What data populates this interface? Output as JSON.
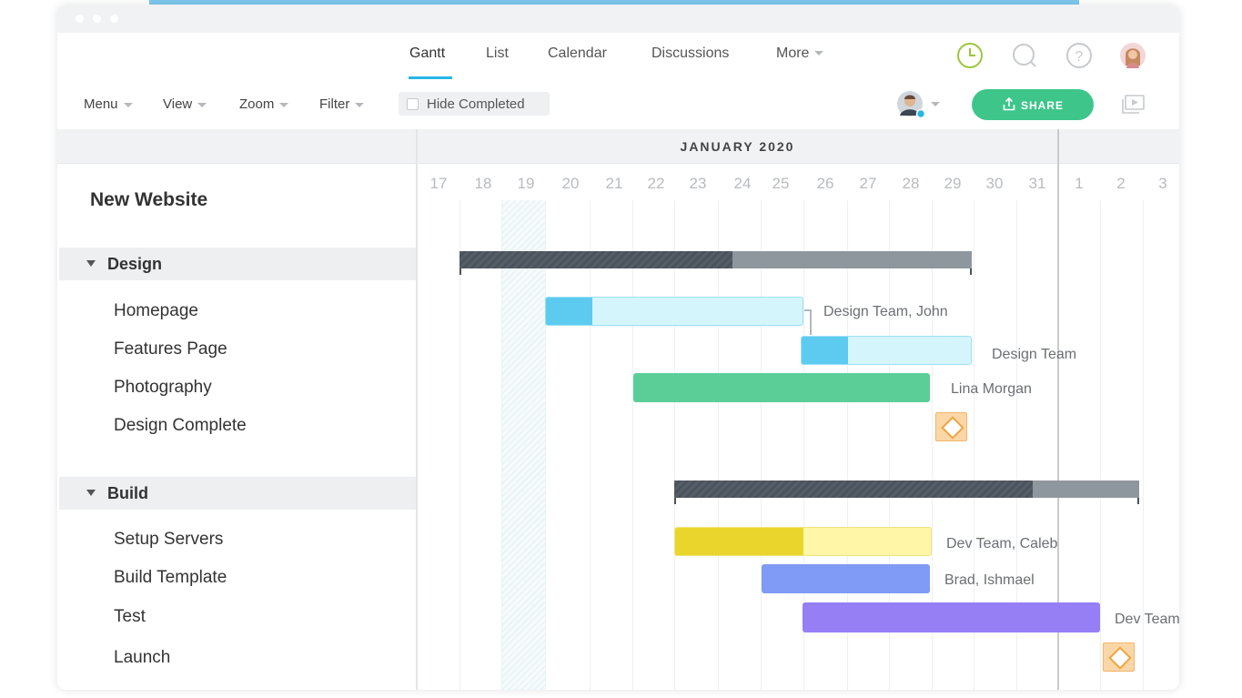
{
  "tabs": [
    {
      "label": "Gantt",
      "active": true
    },
    {
      "label": "List"
    },
    {
      "label": "Calendar"
    },
    {
      "label": "Discussions"
    },
    {
      "label": "More"
    }
  ],
  "header_icons": [
    "clock-icon",
    "search-icon",
    "help-icon",
    "user-avatar"
  ],
  "toolbar": {
    "menu": "Menu",
    "view": "View",
    "zoom": "Zoom",
    "filter": "Filter",
    "hide_completed": "Hide Completed",
    "share": "SHARE"
  },
  "project": {
    "title": "New Website"
  },
  "groups": [
    {
      "name": "Design",
      "tasks": [
        "Homepage",
        "Features Page",
        "Photography",
        "Design Complete"
      ]
    },
    {
      "name": "Build",
      "tasks": [
        "Setup Servers",
        "Build Template",
        "Test",
        "Launch"
      ]
    }
  ],
  "timeline": {
    "month": "JANUARY 2020",
    "days": [
      "17",
      "18",
      "19",
      "20",
      "21",
      "22",
      "23",
      "24",
      "25",
      "26",
      "27",
      "28",
      "29",
      "30",
      "31",
      "1",
      "2",
      "3"
    ]
  },
  "assignees": {
    "homepage": "Design Team, John",
    "features_page": "Design Team",
    "photography": "Lina Morgan",
    "setup_servers": "Dev Team, Caleb",
    "build_template": "Brad, Ishmael",
    "test": "Dev Team"
  },
  "colors": {
    "accent": "#29b6e6",
    "share": "#3ec68a",
    "homepage_bar": "#5ccbef",
    "photography_bar": "#5bce97",
    "setup_bar": "#e9d52c",
    "build_bar": "#7f9bf5",
    "test_bar": "#967ff5",
    "milestone": "#fbd7a8"
  }
}
